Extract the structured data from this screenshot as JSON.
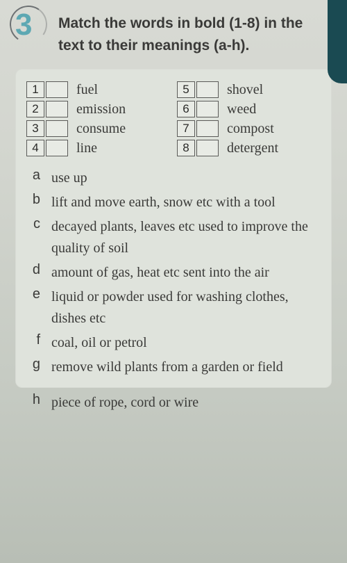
{
  "exercise_number": "3",
  "instructions": "Match the words in bold (1-8) in the text to their meanings (a-h).",
  "words": [
    {
      "num": "1",
      "label": "fuel"
    },
    {
      "num": "2",
      "label": "emission"
    },
    {
      "num": "3",
      "label": "consume"
    },
    {
      "num": "4",
      "label": "line"
    },
    {
      "num": "5",
      "label": "shovel"
    },
    {
      "num": "6",
      "label": "weed"
    },
    {
      "num": "7",
      "label": "compost"
    },
    {
      "num": "8",
      "label": "detergent"
    }
  ],
  "definitions": [
    {
      "letter": "a",
      "text": "use up"
    },
    {
      "letter": "b",
      "text": "lift and move earth, snow etc with a tool"
    },
    {
      "letter": "c",
      "text": "decayed plants, leaves etc used to improve the quality of soil"
    },
    {
      "letter": "d",
      "text": "amount of gas, heat etc sent into the air"
    },
    {
      "letter": "e",
      "text": "liquid or powder used for washing clothes, dishes etc"
    },
    {
      "letter": "f",
      "text": "coal, oil or petrol"
    },
    {
      "letter": "g",
      "text": "remove wild plants from a garden or field"
    }
  ],
  "outside_definition": {
    "letter": "h",
    "text": "piece of rope, cord or wire"
  },
  "colors": {
    "accent_number": "#5da8b3",
    "text": "#3a3a38",
    "card_bg": "#dfe3dc",
    "box_border": "#5a5a58",
    "corner": "#1a4a52"
  },
  "fonts": {
    "instruction_size_pt": 16,
    "body_size_pt": 15,
    "number_size_pt": 33
  }
}
